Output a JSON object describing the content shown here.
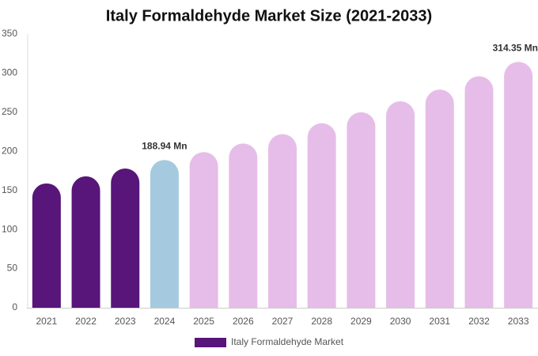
{
  "chart_data": {
    "type": "bar",
    "title": "Italy Formaldehyde Market Size (2021-2033)",
    "categories": [
      "2021",
      "2022",
      "2023",
      "2024",
      "2025",
      "2026",
      "2027",
      "2028",
      "2029",
      "2030",
      "2031",
      "2032",
      "2033"
    ],
    "series": [
      {
        "name": "Italy Formaldehyde Market",
        "color": "#58157a",
        "values": [
          159,
          168,
          178,
          188.94,
          199,
          210,
          222,
          236,
          250,
          264,
          279,
          296,
          314.35
        ],
        "value_labels": [
          null,
          null,
          null,
          "188.94 Mn",
          null,
          null,
          null,
          null,
          null,
          null,
          null,
          null,
          "314.35 Mn"
        ],
        "bar_colors": [
          "#58157a",
          "#58157a",
          "#58157a",
          "#a5cae0",
          "#e6bde8",
          "#e6bde8",
          "#e6bde8",
          "#e6bde8",
          "#e6bde8",
          "#e6bde8",
          "#e6bde8",
          "#e6bde8",
          "#e6bde8"
        ]
      }
    ],
    "ylim": [
      0,
      350
    ],
    "yticks": [
      0,
      50,
      100,
      150,
      200,
      250,
      300,
      350
    ],
    "grid": false,
    "legend": "bottom"
  }
}
